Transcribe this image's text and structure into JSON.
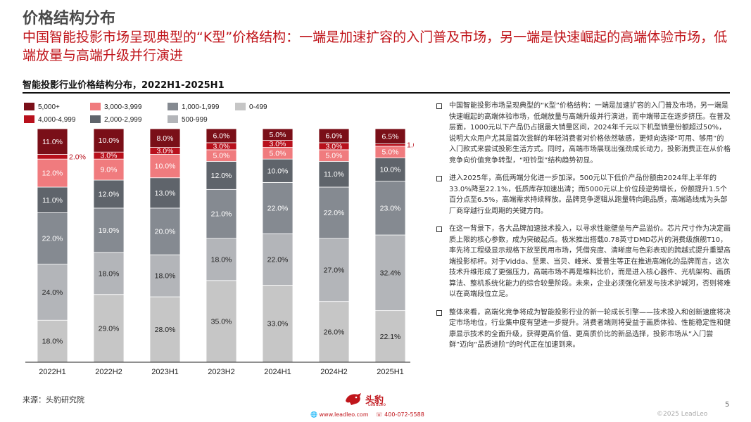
{
  "header": {
    "section_title": "价格结构分布",
    "headline": "中国智能投影市场呈现典型的“K型”价格结构：一端是加速扩容的入门普及市场，另一端是快速崛起的高端体验市场，低端放量与高端升级并行演进"
  },
  "chart_data": {
    "type": "bar",
    "stacked": true,
    "title": "智能投影行业价格结构分布，2022H1-2025H1",
    "categories": [
      "2022H1",
      "2022H2",
      "2023H1",
      "2023H2",
      "2024H1",
      "2024H2",
      "2025H1"
    ],
    "unit": "%",
    "ylim": [
      0,
      100
    ],
    "series": [
      {
        "name": "0-499",
        "color": "#c6c6c6",
        "values": [
          18.0,
          29.0,
          28.0,
          35.0,
          33.0,
          26.0,
          22.1
        ],
        "labels": [
          "18.0%",
          "29.0%",
          "28.0%",
          "35.0%",
          "33.0%",
          "26.0%",
          "22.1%"
        ]
      },
      {
        "name": "500-999",
        "color": "#b3b5b9",
        "values": [
          24.0,
          18.0,
          18.0,
          18.0,
          22.0,
          27.0,
          32.4
        ],
        "labels": [
          "24.0%",
          "18.0%",
          "18.0%",
          "18.0%",
          "22.0%",
          "27.0%",
          "32.4%"
        ]
      },
      {
        "name": "1,000-1,999",
        "color": "#858a91",
        "values": [
          22.0,
          19.0,
          20.0,
          21.0,
          22.0,
          22.0,
          23.0
        ],
        "labels": [
          "22.0%",
          "19.0%",
          "20.0%",
          "21.0%",
          "22.0%",
          "22.0%",
          "23.0%"
        ]
      },
      {
        "name": "2,000-2,999",
        "color": "#5f646b",
        "values": [
          11.0,
          12.0,
          13.0,
          12.0,
          10.0,
          11.0,
          10.0
        ],
        "labels": [
          "11.0%",
          "12.0%",
          "13.0%",
          "12.0%",
          "10.0%",
          "11.0%",
          "10.0%"
        ]
      },
      {
        "name": "3,000-3,999",
        "color": "#f07b7e",
        "values": [
          12.0,
          9.0,
          10.0,
          5.0,
          5.0,
          5.0,
          5.0
        ],
        "labels": [
          "12.0%",
          "9.0%",
          "10.0%",
          "5.0%",
          "5.0%",
          "5.0%",
          "5.0%"
        ]
      },
      {
        "name": "4,000-4,999",
        "color": "#b8101c",
        "values": [
          2.0,
          3.0,
          3.0,
          3.0,
          3.0,
          3.0,
          1.0
        ],
        "labels": [
          "2.0%",
          "3.0%",
          "3.0%",
          "3.0%",
          "3.0%",
          "3.0%",
          "1.0%"
        ]
      },
      {
        "name": "5,000+",
        "color": "#7a0f18",
        "values": [
          11.0,
          10.0,
          8.0,
          6.0,
          5.0,
          6.0,
          6.5
        ],
        "labels": [
          "11.0%",
          "10.0%",
          "8.0%",
          "6.0%",
          "5.0%",
          "6.0%",
          "6.5%"
        ]
      }
    ],
    "legend": {
      "placement": "top-left",
      "order": [
        "5,000+",
        "3,000-3,999",
        "1,000-1,999",
        "0-499",
        "4,000-4,999",
        "2,000-2,999",
        "500-999"
      ]
    }
  },
  "bullets": [
    "中国智能投影市场呈现典型的“K型”价格结构：一端是加速扩容的入门普及市场，另一端是快速崛起的高端体验市场，低端放量与高端升级并行演进，而中端带正在逐步挤压。在普及层面，1000元以下产品仍占据最大销量区间，2024年千元以下机型销量份额超过50%，说明大众用户尤其是首次尝鲜的年轻消费者对价格依然敏感，更倾向选择“可用、够用”的入门款式来尝试投影生活方式。同时，高端市场展现出强劲成长动力，投影消费正在从价格竞争向价值竞争转型，“哑铃型”结构趋势初显。",
    "进入2025年，高低两端分化进一步加深。500元以下低价产品份额由2024年上半年的33.0%降至22.1%，低质库存加速出清；而5000元以上价位段逆势增长，份额提升1.5个百分点至6.5%，高端需求持续释放。品牌竞争逻辑从跑量转向跑品质，高端路线成为头部厂商穿越行业周期的关键方向。",
    "在这一背景下，各大品牌加速技术投入，以寻求性能壁垒与产品溢价。芯片尺寸作为决定画质上限的核心参数，成为突破起点。极米推出搭载0.78英寸DMD芯片的消费级旗舰T10，率先将工程级显示规格下放至民用市场，凭借亮度、清晰度与色彩表现的跨越式提升重塑高端投影标杆。对于Vidda、坚果、当贝、峰米、爱普生等正在推进高端化的品牌而言，这次技术升维形成了更强压力，高端市场不再是堆料比价，而是进入核心器件、光机架构、画质算法、整机系统化能力的综合较量阶段。未来，企业必须强化研发与技术护城河，否则将难以在高端段位立足。",
    "整体来看，高端化竞争将成为智能投影行业的新一轮成长引擎——技术投入和创新速度将决定市场地位，行业集中度有望进一步提升。消费者端则将受益于画质体验、性能稳定性和健康显示技术的全面升级，获得更高价值、更高质价比的新品选择，投影市场从“入门尝鲜”迈向“品质进阶”的时代正在加速到来。"
  ],
  "footer": {
    "source": "来源：头豹研究院",
    "page_number": "5",
    "copyright": "©2025 LeadLeo",
    "logo_cn": "头豹",
    "logo_en": "LeadLeo",
    "website": "www.leadleo.com",
    "phone": "400-072-5588"
  }
}
